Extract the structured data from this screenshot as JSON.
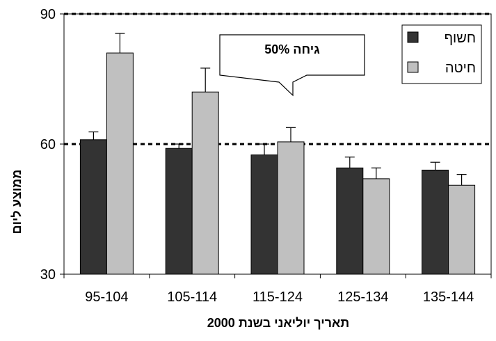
{
  "chart_data": {
    "type": "bar",
    "ylabel": "ממוצע ליום",
    "xlabel": "תאריך יוליאני בשנת 2000",
    "ylim": [
      30,
      90
    ],
    "yticks": [
      "30",
      "60",
      "90"
    ],
    "reference_lines": [
      60,
      90
    ],
    "categories": [
      "95-104",
      "105-114",
      "115-124",
      "125-134",
      "135-144"
    ],
    "series": [
      {
        "name": "חשוף",
        "color": "#333333",
        "values": [
          61,
          59,
          57.5,
          54.5,
          54
        ],
        "errors": [
          1.8,
          1,
          2.5,
          2.5,
          1.8
        ]
      },
      {
        "name": "חיטה",
        "color": "#c0c0c0",
        "values": [
          81,
          72,
          60.5,
          52,
          50.5
        ],
        "errors": [
          4.5,
          5.5,
          3.3,
          2.5,
          2.5
        ]
      }
    ],
    "annotation": {
      "text": "גיחה 50%"
    },
    "legend_position": "top-right",
    "grid": false
  }
}
